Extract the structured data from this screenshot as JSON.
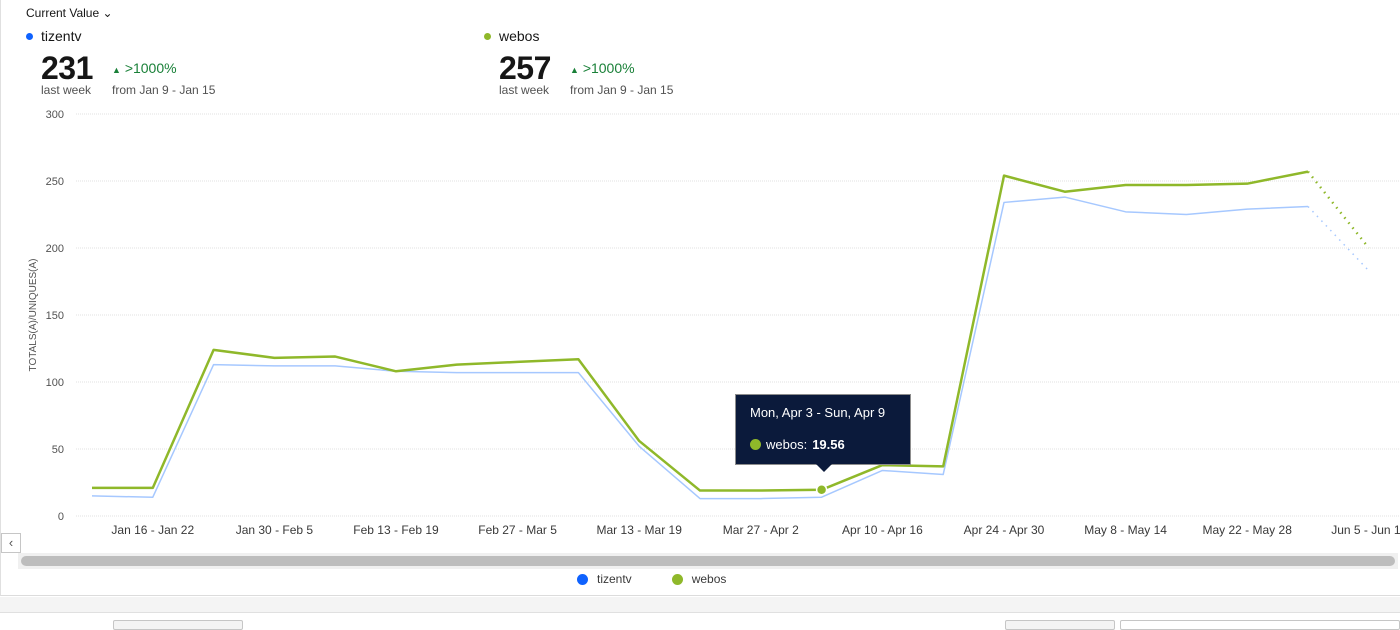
{
  "header": {
    "metric_selector": "Current Value"
  },
  "summary": [
    {
      "name": "tizentv",
      "color": "#0f62fe",
      "value": "231",
      "period": "last week",
      "change": ">1000%",
      "from": "from Jan 9 - Jan 15"
    },
    {
      "name": "webos",
      "color": "#8fb82a",
      "value": "257",
      "period": "last week",
      "change": ">1000%",
      "from": "from Jan 9 - Jan 15"
    }
  ],
  "tooltip": {
    "title": "Mon, Apr 3 - Sun, Apr 9",
    "series": "webos:",
    "value": "19.56"
  },
  "chart_data": {
    "type": "line",
    "ylabel": "TOTALS(A)/UNIQUES(A)",
    "ylim": [
      0,
      300
    ],
    "yticks": [
      "0",
      "50",
      "100",
      "150",
      "200",
      "250",
      "300"
    ],
    "grid": true,
    "legend_placement": "bottom",
    "x": [
      "Jan 9 - Jan 15",
      "Jan 16 - Jan 22",
      "Jan 23 - Jan 29",
      "Jan 30 - Feb 5",
      "Feb 6 - Feb 12",
      "Feb 13 - Feb 19",
      "Feb 20 - Feb 26",
      "Feb 27 - Mar 5",
      "Mar 6 - Mar 12",
      "Mar 13 - Mar 19",
      "Mar 20 - Mar 26",
      "Mar 27 - Apr 2",
      "Apr 3 - Apr 9",
      "Apr 10 - Apr 16",
      "Apr 17 - Apr 23",
      "Apr 24 - Apr 30",
      "May 1 - May 7",
      "May 8 - May 14",
      "May 15 - May 21",
      "May 22 - May 28",
      "May 29 - Jun 4",
      "Jun 5 - Jun 11"
    ],
    "xtick_labels": [
      "Jan 16 - Jan 22",
      "Jan 30 - Feb 5",
      "Feb 13 - Feb 19",
      "Feb 27 - Mar 5",
      "Mar 13 - Mar 19",
      "Mar 27 - Apr 2",
      "Apr 10 - Apr 16",
      "Apr 24 - Apr 30",
      "May 8 - May 14",
      "May 22 - May 28",
      "Jun 5 - Jun 11"
    ],
    "series": [
      {
        "name": "tizentv",
        "color": "#a6c8ff",
        "legend_color": "#0f62fe",
        "values": [
          15,
          14,
          113,
          112,
          112,
          108,
          107,
          107,
          107,
          52,
          13,
          13,
          14,
          34,
          31,
          234,
          238,
          227,
          225,
          229,
          231,
          183
        ],
        "incomplete_last": true
      },
      {
        "name": "webos",
        "color": "#8fb82a",
        "legend_color": "#8fb82a",
        "values": [
          21,
          21,
          124,
          118,
          119,
          108,
          113,
          115,
          117,
          56,
          19,
          19,
          19.56,
          38,
          37,
          254,
          242,
          247,
          247,
          248,
          257,
          200
        ],
        "incomplete_last": true
      }
    ]
  }
}
